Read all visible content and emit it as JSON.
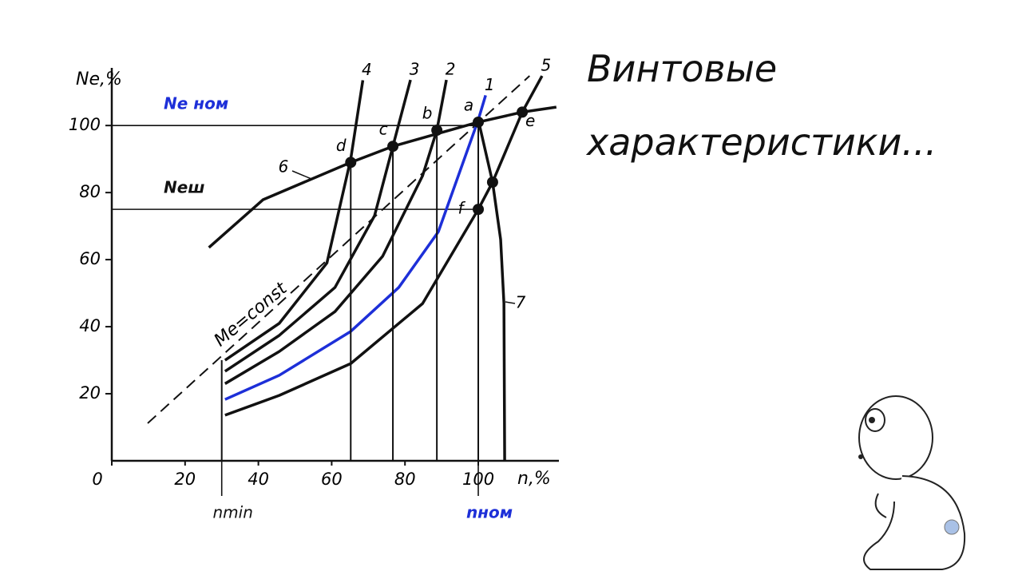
{
  "chart_data": {
    "type": "line",
    "title": "Винтовые характеристики...",
    "x_label": "n,%",
    "y_label": "Ne,%",
    "xlim": [
      0,
      122
    ],
    "ylim": [
      0,
      116
    ],
    "xticks": [
      0,
      20,
      40,
      60,
      80,
      100
    ],
    "yticks": [
      20,
      40,
      60,
      80,
      100
    ],
    "series": [
      {
        "name": "1",
        "color": "#1d2fd8",
        "x": [
          30.9,
          45.7,
          65.2,
          78.3,
          89.1,
          100,
          102
        ],
        "values": [
          18.3,
          25.5,
          38.6,
          51.7,
          68.3,
          101.7,
          109
        ]
      },
      {
        "name": "2",
        "color": "#111111",
        "x": [
          30.9,
          45.7,
          60.9,
          73.9,
          84.8,
          88.7,
          91.3
        ],
        "values": [
          23,
          32.6,
          44.5,
          61,
          85,
          98.6,
          113.6
        ]
      },
      {
        "name": "3",
        "color": "#111111",
        "x": [
          30.9,
          45.7,
          60.9,
          71.7,
          76.7,
          81.5
        ],
        "values": [
          26.7,
          37.4,
          51.7,
          73.1,
          93.8,
          113.6
        ]
      },
      {
        "name": "4",
        "color": "#111111",
        "x": [
          30.9,
          45.7,
          58.7,
          65.2,
          68.5
        ],
        "values": [
          30,
          41,
          59,
          90,
          113.5
        ]
      },
      {
        "name": "5",
        "color": "#111111",
        "x": [
          30.9,
          45.7,
          65.2,
          84.8,
          100,
          103.9,
          112,
          117.4
        ],
        "values": [
          13.6,
          19.5,
          29,
          46.9,
          75,
          83.1,
          104,
          114.8
        ]
      },
      {
        "name": "6",
        "color": "#111111",
        "x": [
          26.5,
          41.3,
          65.2,
          76.7,
          100,
          112,
          121.3
        ],
        "values": [
          63.6,
          77.9,
          89,
          93.8,
          101,
          104,
          105.5
        ]
      },
      {
        "name": "7",
        "color": "#111111",
        "x": [
          100,
          103.9,
          106.1,
          107,
          107.2
        ],
        "values": [
          101.7,
          83.1,
          66,
          47,
          0
        ]
      }
    ],
    "reference_line": {
      "label": "Me=const",
      "x": [
        9.8,
        114
      ],
      "values": [
        11.2,
        114.8
      ],
      "dashed": true
    },
    "hlines": [
      {
        "label": "Ne ном",
        "value": 100,
        "color": "#1d2fd8"
      },
      {
        "label": "Neш",
        "value": 75,
        "color": "#111111"
      }
    ],
    "vlines": [
      {
        "label": "nmin",
        "value": 30,
        "color": "#111111"
      },
      {
        "label": "nном",
        "value": 100,
        "color": "#1d2fd8"
      }
    ],
    "points": [
      {
        "label": "d",
        "x": 65.2,
        "y": 89,
        "drop": true
      },
      {
        "label": "c",
        "x": 76.7,
        "y": 93.8,
        "drop": true
      },
      {
        "label": "b",
        "x": 88.7,
        "y": 98.6,
        "drop": true
      },
      {
        "label": "a",
        "x": 100,
        "y": 101,
        "drop": true
      },
      {
        "label": "e",
        "x": 112,
        "y": 104,
        "drop": false
      },
      {
        "label": "f",
        "x": 100,
        "y": 75,
        "drop": false
      },
      {
        "x": 103.9,
        "y": 83.1,
        "drop": false
      }
    ]
  }
}
